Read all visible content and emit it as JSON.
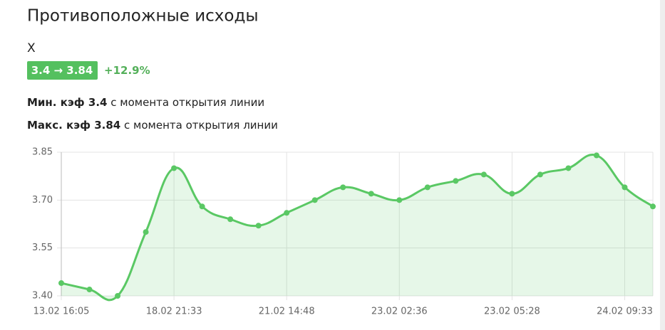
{
  "header": {
    "title": "Противоположные исходы",
    "outcome": "Х",
    "badge": "3.4 → 3.84",
    "change": "+12.9%"
  },
  "stats": [
    {
      "label": "Мин. кэф 3.4",
      "text": "с момента открытия линии"
    },
    {
      "label": "Макс. кэф 3.84",
      "text": "с момента открытия линии"
    }
  ],
  "chart_data": {
    "type": "line",
    "categories": [
      "13.02 16:05",
      null,
      null,
      null,
      "18.02 21:33",
      null,
      null,
      null,
      "21.02 14:48",
      null,
      null,
      null,
      "23.02 02:36",
      null,
      null,
      null,
      "23.02 05:28",
      null,
      null,
      null,
      "24.02 09:33",
      null
    ],
    "series": [
      {
        "color": "#5ac864",
        "values": [
          3.44,
          3.42,
          3.4,
          3.6,
          3.8,
          3.68,
          3.64,
          3.62,
          3.66,
          3.7,
          3.74,
          3.72,
          3.7,
          3.74,
          3.76,
          3.78,
          3.72,
          3.78,
          3.8,
          3.84,
          3.74,
          3.68
        ]
      }
    ],
    "ylim": [
      3.4,
      3.85
    ],
    "yticks": [
      {
        "value": 3.4,
        "label": "3.40"
      },
      3.55,
      {
        "value": 3.7,
        "label": "3.70"
      },
      3.85
    ],
    "grid": true,
    "fill": true
  }
}
